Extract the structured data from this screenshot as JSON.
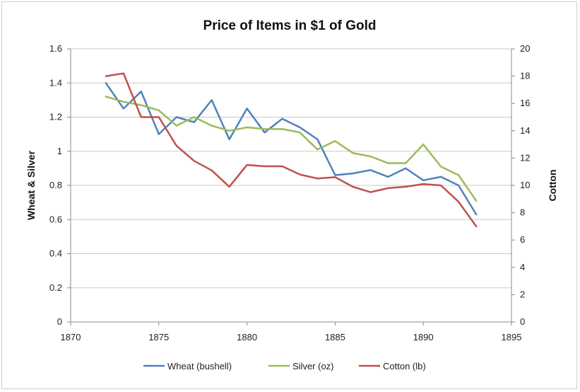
{
  "chart_data": {
    "type": "line",
    "title": "Price of Items in $1 of Gold",
    "xlabel": "",
    "ylabel": "Wheat & Silver",
    "y2label": "Cotton",
    "xlim": [
      1870,
      1895
    ],
    "ylim": [
      0,
      1.6
    ],
    "y2lim": [
      0,
      20
    ],
    "x_ticks": [
      1870,
      1875,
      1880,
      1885,
      1890,
      1895
    ],
    "y_ticks": [
      0,
      0.2,
      0.4,
      0.6,
      0.8,
      1,
      1.2,
      1.4,
      1.6
    ],
    "y2_ticks": [
      0,
      2,
      4,
      6,
      8,
      10,
      12,
      14,
      16,
      18,
      20
    ],
    "grid": "horizontal",
    "legend_position": "bottom",
    "series": [
      {
        "name": "Wheat (bushell)",
        "axis": "left",
        "color": "#4f81bd",
        "x": [
          1872,
          1873,
          1874,
          1875,
          1876,
          1877,
          1878,
          1879,
          1880,
          1881,
          1882,
          1883,
          1884,
          1885,
          1886,
          1887,
          1888,
          1889,
          1890,
          1891,
          1892,
          1893
        ],
        "values": [
          1.4,
          1.25,
          1.35,
          1.1,
          1.2,
          1.17,
          1.3,
          1.07,
          1.25,
          1.11,
          1.19,
          1.14,
          1.07,
          0.86,
          0.87,
          0.89,
          0.85,
          0.9,
          0.83,
          0.85,
          0.8,
          0.63
        ]
      },
      {
        "name": "Silver (oz)",
        "axis": "left",
        "color": "#9bbb59",
        "x": [
          1872,
          1873,
          1874,
          1875,
          1876,
          1877,
          1878,
          1879,
          1880,
          1881,
          1882,
          1883,
          1884,
          1885,
          1886,
          1887,
          1888,
          1889,
          1890,
          1891,
          1892,
          1893
        ],
        "values": [
          1.32,
          1.29,
          1.27,
          1.24,
          1.15,
          1.2,
          1.15,
          1.12,
          1.14,
          1.13,
          1.13,
          1.11,
          1.01,
          1.06,
          0.99,
          0.97,
          0.93,
          0.93,
          1.04,
          0.91,
          0.86,
          0.71
        ]
      },
      {
        "name": "Cotton (lb)",
        "axis": "right",
        "color": "#c0504d",
        "x": [
          1872,
          1873,
          1874,
          1875,
          1876,
          1877,
          1878,
          1879,
          1880,
          1881,
          1882,
          1883,
          1884,
          1885,
          1886,
          1887,
          1888,
          1889,
          1890,
          1891,
          1892,
          1893
        ],
        "values": [
          18.0,
          18.2,
          15.0,
          15.0,
          12.9,
          11.8,
          11.1,
          9.9,
          11.5,
          11.4,
          11.4,
          10.8,
          10.5,
          10.6,
          9.9,
          9.5,
          9.8,
          9.9,
          10.1,
          10.0,
          8.8,
          7.0
        ]
      }
    ]
  }
}
